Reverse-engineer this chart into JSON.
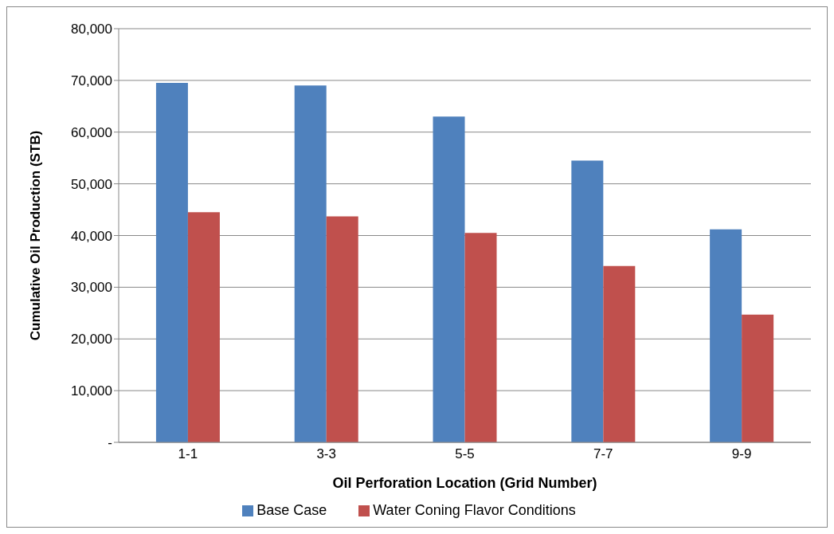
{
  "chart_data": {
    "type": "bar",
    "xlabel": "Oil Perforation Location (Grid Number)",
    "ylabel": "Cumulative Oil Production (STB)",
    "categories": [
      "1-1",
      "3-3",
      "5-5",
      "7-7",
      "9-9"
    ],
    "series": [
      {
        "name": "Base Case",
        "color": "#4f81bd",
        "values": [
          69500,
          69000,
          63000,
          54500,
          41200
        ]
      },
      {
        "name": "Water Coning Flavor Conditions",
        "color": "#c0504d",
        "values": [
          44500,
          43700,
          40500,
          34100,
          24700
        ]
      }
    ],
    "ylim": [
      0,
      80000
    ],
    "yticks": [
      {
        "value": 0,
        "label": "-"
      },
      {
        "value": 10000,
        "label": "10,000"
      },
      {
        "value": 20000,
        "label": "20,000"
      },
      {
        "value": 30000,
        "label": "30,000"
      },
      {
        "value": 40000,
        "label": "40,000"
      },
      {
        "value": 50000,
        "label": "50,000"
      },
      {
        "value": 60000,
        "label": "60,000"
      },
      {
        "value": 70000,
        "label": "70,000"
      },
      {
        "value": 80000,
        "label": "80,000"
      }
    ],
    "grid": "y",
    "legend": "bottom"
  }
}
